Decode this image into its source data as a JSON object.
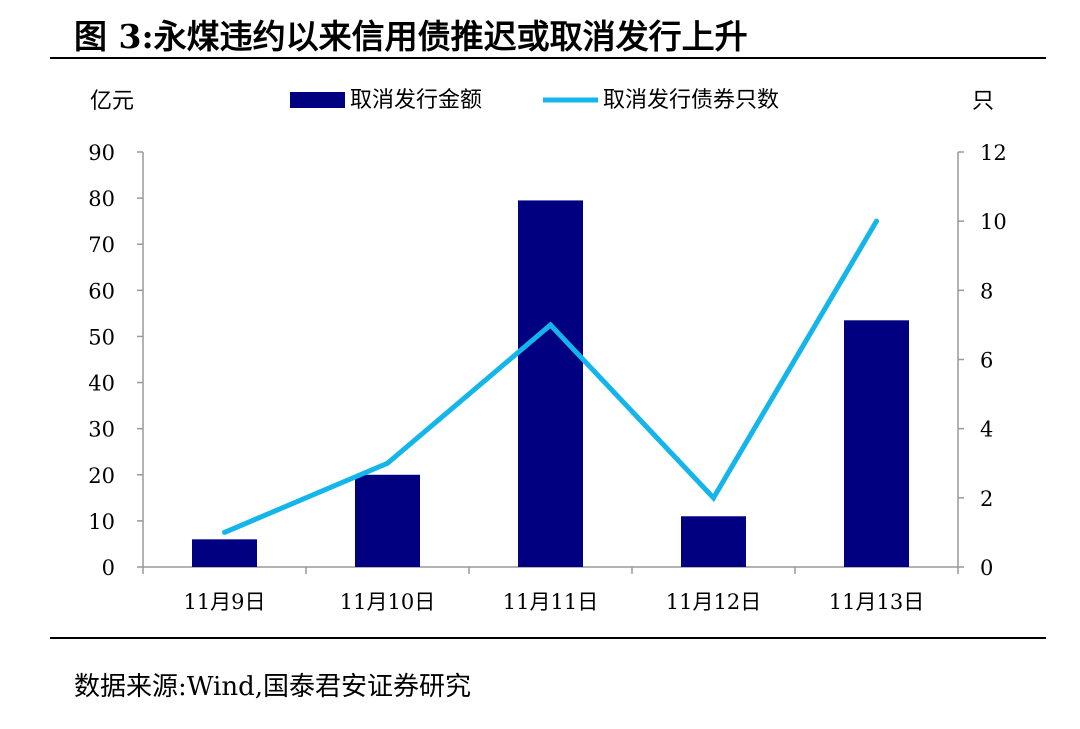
{
  "figure": {
    "title": "图 3:永煤违约以来信用债推迟或取消发行上升",
    "source": "数据来源:Wind,国泰君安证券研究"
  },
  "chart_data": {
    "type": "bar",
    "categories": [
      "11月9日",
      "11月10日",
      "11月11日",
      "11月12日",
      "11月13日"
    ],
    "series": [
      {
        "name": "取消发行金额",
        "type": "bar",
        "axis": "left",
        "values": [
          6,
          20,
          79.5,
          11,
          53.5
        ],
        "color": "#000080"
      },
      {
        "name": "取消发行债券只数",
        "type": "line",
        "axis": "right",
        "values": [
          1,
          3,
          7,
          2,
          10
        ],
        "color": "#13b5ea"
      }
    ],
    "ylabel_left": "亿元",
    "ylabel_right": "只",
    "ylim_left": [
      0,
      90
    ],
    "yticks_left": [
      "0",
      "10",
      "20",
      "30",
      "40",
      "50",
      "60",
      "70",
      "80",
      "90"
    ],
    "ylim_right": [
      0,
      12
    ],
    "yticks_right": [
      "0",
      "2",
      "4",
      "6",
      "8",
      "10",
      "12"
    ],
    "legend": "top-center",
    "grid": false
  }
}
